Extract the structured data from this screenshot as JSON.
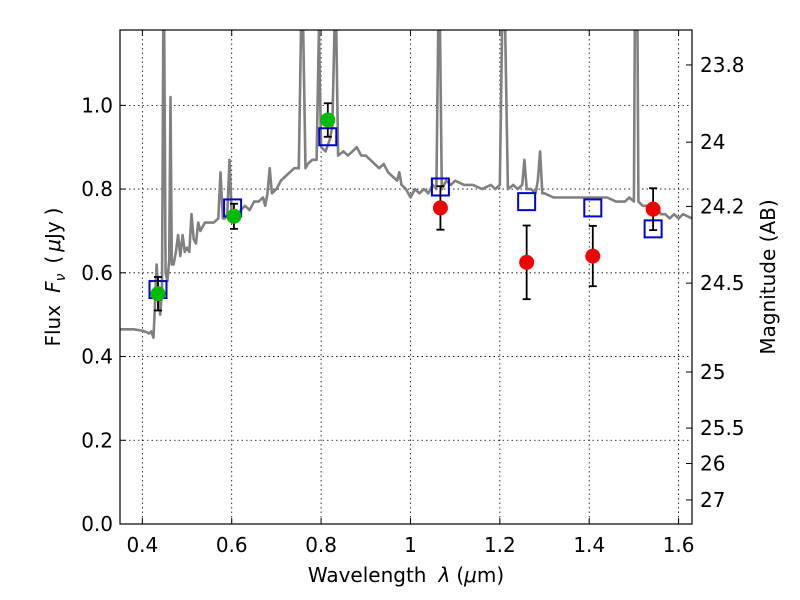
{
  "chart_data": {
    "type": "scatter",
    "title": "",
    "xlabel": "Wavelength",
    "xlabel_symbol": "λ",
    "xlabel_unit_open": "(",
    "xlabel_unit_mu": "μ",
    "xlabel_unit_rest": "m)",
    "ylabel": "Flux",
    "ylabel_symbol": "F",
    "ylabel_subscript": "ν",
    "ylabel_unit_open": "(",
    "ylabel_unit_mu": "μ",
    "ylabel_unit_rest": "Jy",
    "ylabel_unit_close": ")",
    "y2label": "Magnitude (AB)",
    "xlim": [
      0.35,
      1.63
    ],
    "ylim": [
      0.0,
      1.18
    ],
    "grid": true,
    "x_ticks": [
      {
        "value": 0.4,
        "label": "0.4"
      },
      {
        "value": 0.6,
        "label": "0.6"
      },
      {
        "value": 0.8,
        "label": "0.8"
      },
      {
        "value": 1.0,
        "label": "1"
      },
      {
        "value": 1.2,
        "label": "1.2"
      },
      {
        "value": 1.4,
        "label": "1.4"
      },
      {
        "value": 1.6,
        "label": "1.6"
      }
    ],
    "y_ticks": [
      {
        "value": 0.0,
        "label": "0.0"
      },
      {
        "value": 0.2,
        "label": "0.2"
      },
      {
        "value": 0.4,
        "label": "0.4"
      },
      {
        "value": 0.6,
        "label": "0.6"
      },
      {
        "value": 0.8,
        "label": "0.8"
      },
      {
        "value": 1.0,
        "label": "1.0"
      }
    ],
    "y2_ticks": [
      {
        "label": "23.8",
        "flux": 1.0965
      },
      {
        "label": "24",
        "flux": 0.912
      },
      {
        "label": "24.2",
        "flux": 0.7586
      },
      {
        "label": "24.5",
        "flux": 0.5754
      },
      {
        "label": "25",
        "flux": 0.3631
      },
      {
        "label": "25.5",
        "flux": 0.2291
      },
      {
        "label": "26",
        "flux": 0.1445
      },
      {
        "label": "27",
        "flux": 0.0575
      }
    ],
    "series": [
      {
        "kind": "line",
        "color": "#808080",
        "points": [
          [
            0.35,
            0.465
          ],
          [
            0.38,
            0.465
          ],
          [
            0.4,
            0.462
          ],
          [
            0.41,
            0.458
          ],
          [
            0.415,
            0.455
          ],
          [
            0.42,
            0.46
          ],
          [
            0.425,
            0.445
          ],
          [
            0.428,
            0.52
          ],
          [
            0.432,
            0.62
          ],
          [
            0.436,
            0.55
          ],
          [
            0.44,
            0.5
          ],
          [
            0.444,
            0.56
          ],
          [
            0.447,
            1.18
          ],
          [
            0.449,
            1.18
          ],
          [
            0.452,
            0.6
          ],
          [
            0.456,
            0.58
          ],
          [
            0.46,
            0.63
          ],
          [
            0.463,
            1.02
          ],
          [
            0.466,
            0.62
          ],
          [
            0.47,
            0.62
          ],
          [
            0.475,
            0.65
          ],
          [
            0.48,
            0.69
          ],
          [
            0.485,
            0.64
          ],
          [
            0.49,
            0.69
          ],
          [
            0.495,
            0.65
          ],
          [
            0.5,
            0.66
          ],
          [
            0.505,
            0.65
          ],
          [
            0.51,
            0.74
          ],
          [
            0.515,
            0.68
          ],
          [
            0.52,
            0.67
          ],
          [
            0.525,
            0.72
          ],
          [
            0.53,
            0.7
          ],
          [
            0.54,
            0.72
          ],
          [
            0.55,
            0.72
          ],
          [
            0.56,
            0.72
          ],
          [
            0.57,
            0.73
          ],
          [
            0.575,
            0.84
          ],
          [
            0.58,
            0.73
          ],
          [
            0.585,
            0.73
          ],
          [
            0.59,
            0.74
          ],
          [
            0.595,
            0.87
          ],
          [
            0.6,
            0.74
          ],
          [
            0.61,
            0.73
          ],
          [
            0.62,
            0.75
          ],
          [
            0.63,
            0.76
          ],
          [
            0.64,
            0.75
          ],
          [
            0.65,
            0.77
          ],
          [
            0.66,
            0.77
          ],
          [
            0.67,
            0.78
          ],
          [
            0.675,
            0.76
          ],
          [
            0.68,
            0.79
          ],
          [
            0.685,
            0.85
          ],
          [
            0.69,
            0.79
          ],
          [
            0.7,
            0.8
          ],
          [
            0.71,
            0.82
          ],
          [
            0.72,
            0.83
          ],
          [
            0.73,
            0.84
          ],
          [
            0.74,
            0.85
          ],
          [
            0.75,
            0.85
          ],
          [
            0.755,
            1.18
          ],
          [
            0.76,
            1.18
          ],
          [
            0.765,
            0.85
          ],
          [
            0.77,
            0.86
          ],
          [
            0.78,
            0.87
          ],
          [
            0.79,
            0.87
          ],
          [
            0.795,
            1.18
          ],
          [
            0.8,
            0.9
          ],
          [
            0.81,
            0.89
          ],
          [
            0.82,
            0.92
          ],
          [
            0.825,
            0.95
          ],
          [
            0.83,
            1.18
          ],
          [
            0.834,
            1.18
          ],
          [
            0.838,
            0.88
          ],
          [
            0.85,
            0.89
          ],
          [
            0.86,
            0.88
          ],
          [
            0.87,
            0.89
          ],
          [
            0.88,
            0.9
          ],
          [
            0.89,
            0.88
          ],
          [
            0.9,
            0.88
          ],
          [
            0.91,
            0.87
          ],
          [
            0.92,
            0.86
          ],
          [
            0.93,
            0.85
          ],
          [
            0.94,
            0.86
          ],
          [
            0.95,
            0.84
          ],
          [
            0.96,
            0.83
          ],
          [
            0.97,
            0.82
          ],
          [
            0.975,
            0.84
          ],
          [
            0.98,
            0.81
          ],
          [
            0.99,
            0.8
          ],
          [
            1.0,
            0.78
          ],
          [
            1.01,
            0.8
          ],
          [
            1.02,
            0.79
          ],
          [
            1.03,
            0.8
          ],
          [
            1.04,
            0.79
          ],
          [
            1.05,
            0.81
          ],
          [
            1.058,
            0.8
          ],
          [
            1.062,
            1.18
          ],
          [
            1.066,
            1.18
          ],
          [
            1.07,
            0.8
          ],
          [
            1.08,
            0.82
          ],
          [
            1.09,
            0.81
          ],
          [
            1.1,
            0.82
          ],
          [
            1.12,
            0.81
          ],
          [
            1.14,
            0.81
          ],
          [
            1.16,
            0.8
          ],
          [
            1.18,
            0.81
          ],
          [
            1.19,
            0.8
          ],
          [
            1.2,
            0.81
          ],
          [
            1.205,
            1.18
          ],
          [
            1.212,
            1.18
          ],
          [
            1.218,
            0.8
          ],
          [
            1.23,
            0.81
          ],
          [
            1.24,
            0.8
          ],
          [
            1.25,
            0.81
          ],
          [
            1.255,
            0.87
          ],
          [
            1.26,
            0.8
          ],
          [
            1.27,
            0.8
          ],
          [
            1.28,
            0.79
          ],
          [
            1.285,
            0.82
          ],
          [
            1.29,
            0.89
          ],
          [
            1.295,
            0.79
          ],
          [
            1.3,
            0.79
          ],
          [
            1.32,
            0.78
          ],
          [
            1.34,
            0.78
          ],
          [
            1.36,
            0.78
          ],
          [
            1.38,
            0.78
          ],
          [
            1.4,
            0.78
          ],
          [
            1.42,
            0.78
          ],
          [
            1.44,
            0.78
          ],
          [
            1.46,
            0.77
          ],
          [
            1.48,
            0.77
          ],
          [
            1.49,
            0.78
          ],
          [
            1.5,
            0.77
          ],
          [
            1.502,
            1.18
          ],
          [
            1.508,
            1.18
          ],
          [
            1.51,
            0.77
          ],
          [
            1.52,
            0.76
          ],
          [
            1.53,
            0.76
          ],
          [
            1.54,
            0.75
          ],
          [
            1.55,
            0.76
          ],
          [
            1.56,
            0.74
          ],
          [
            1.57,
            0.74
          ],
          [
            1.58,
            0.73
          ],
          [
            1.59,
            0.74
          ],
          [
            1.6,
            0.73
          ],
          [
            1.61,
            0.74
          ],
          [
            1.63,
            0.73
          ]
        ]
      },
      {
        "kind": "open-square",
        "color": "#0000cc",
        "points": [
          [
            0.435,
            0.56
          ],
          [
            0.602,
            0.755
          ],
          [
            0.815,
            0.925
          ],
          [
            1.067,
            0.805
          ],
          [
            1.26,
            0.77
          ],
          [
            1.408,
            0.755
          ],
          [
            1.543,
            0.705
          ]
        ]
      },
      {
        "kind": "filled-circle",
        "color": "#00bb00",
        "points": [
          {
            "x": 0.435,
            "y": 0.55,
            "err": 0.04
          },
          {
            "x": 0.605,
            "y": 0.735,
            "err": 0.03
          },
          {
            "x": 0.815,
            "y": 0.965,
            "err": 0.04
          }
        ]
      },
      {
        "kind": "filled-circle",
        "color": "#ee0000",
        "points": [
          {
            "x": 1.067,
            "y": 0.755,
            "err": 0.052
          },
          {
            "x": 1.26,
            "y": 0.625,
            "err": 0.088
          },
          {
            "x": 1.408,
            "y": 0.64,
            "err": 0.072
          },
          {
            "x": 1.543,
            "y": 0.752,
            "err": 0.05
          }
        ]
      }
    ]
  }
}
